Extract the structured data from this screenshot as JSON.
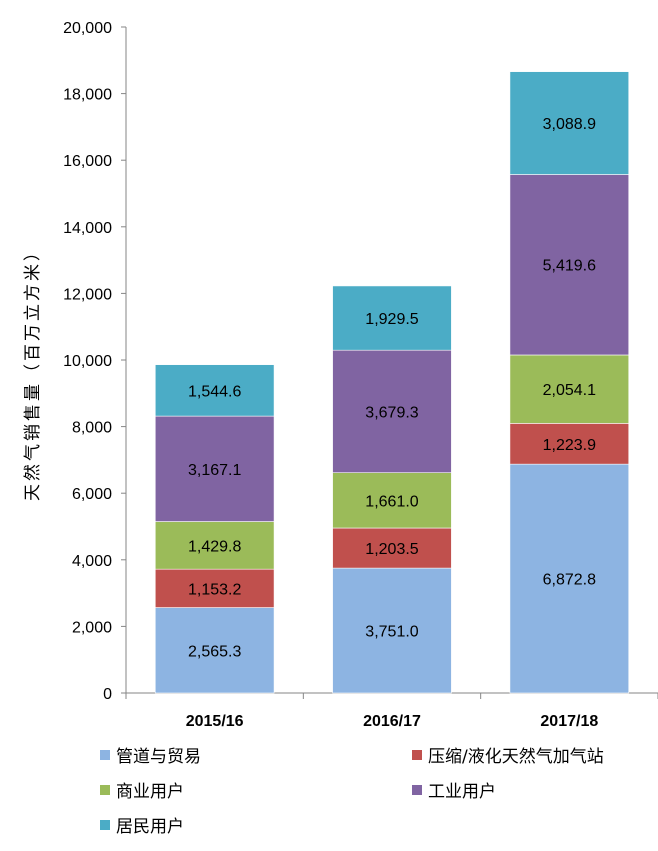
{
  "chart_data": {
    "type": "bar",
    "stacked": true,
    "categories": [
      "2015/16",
      "2016/17",
      "2017/18"
    ],
    "series": [
      {
        "name": "管道与贸易",
        "color": "#8db4e2",
        "values": [
          2565.3,
          3751.0,
          6872.8
        ],
        "labels": [
          "2,565.3",
          "3,751.0",
          "6,872.8"
        ]
      },
      {
        "name": "压缩/液化天然气加气站",
        "color": "#c0504d",
        "values": [
          1153.2,
          1203.5,
          1223.9
        ],
        "labels": [
          "1,153.2",
          "1,203.5",
          "1,223.9"
        ]
      },
      {
        "name": "商业用户",
        "color": "#9bbb59",
        "values": [
          1429.8,
          1661.0,
          2054.1
        ],
        "labels": [
          "1,429.8",
          "1,661.0",
          "2,054.1"
        ]
      },
      {
        "name": "工业用户",
        "color": "#8064a2",
        "values": [
          3167.1,
          3679.3,
          5419.6
        ],
        "labels": [
          "3,167.1",
          "3,679.3",
          "5,419.6"
        ]
      },
      {
        "name": "居民用户",
        "color": "#4bacc6",
        "values": [
          1544.6,
          1929.5,
          3088.9
        ],
        "labels": [
          "1,544.6",
          "1,929.5",
          "3,088.9"
        ]
      }
    ],
    "ylabel": "天然气销售量（百万立方米）",
    "ylim": [
      0,
      20000
    ],
    "yticks": [
      0,
      2000,
      4000,
      6000,
      8000,
      10000,
      12000,
      14000,
      16000,
      18000,
      20000
    ],
    "ytick_labels": [
      "0",
      "2,000",
      "4,000",
      "6,000",
      "8,000",
      "10,000",
      "12,000",
      "14,000",
      "16,000",
      "18,000",
      "20,000"
    ],
    "grid": false,
    "legend_position": "bottom"
  }
}
